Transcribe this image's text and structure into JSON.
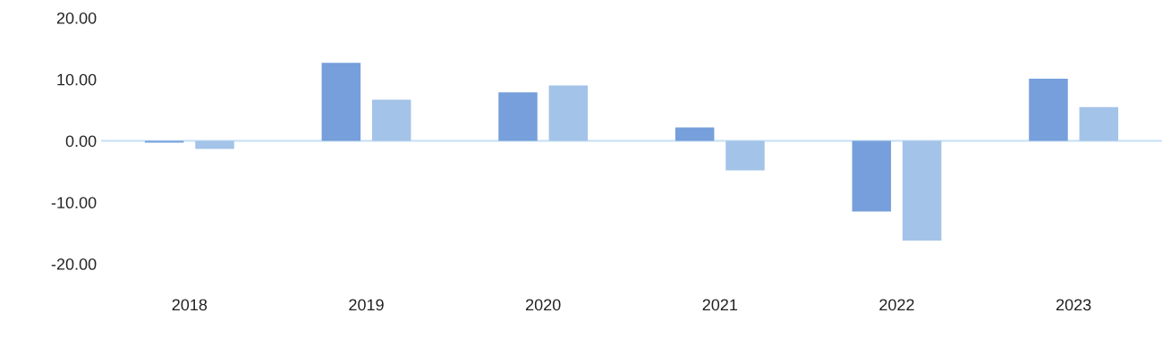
{
  "chart_data": {
    "type": "bar",
    "categories": [
      "2018",
      "2019",
      "2020",
      "2021",
      "2022",
      "2023"
    ],
    "series": [
      {
        "color": "#769fdb",
        "values": [
          -0.3,
          12.7,
          7.9,
          2.2,
          -11.5,
          10.1
        ]
      },
      {
        "color": "#a4c3e8",
        "values": [
          -1.3,
          6.7,
          9.0,
          -4.8,
          -16.2,
          5.5
        ]
      }
    ],
    "ylim": [
      -20,
      20
    ],
    "yticks": [
      {
        "value": -20,
        "label": "-20.00"
      },
      {
        "value": -10,
        "label": "-10.00"
      },
      {
        "value": 0,
        "label": "0.00"
      },
      {
        "value": 10,
        "label": "10.00"
      },
      {
        "value": 20,
        "label": "20.00"
      }
    ],
    "ref_lines": [
      {
        "axis": "y",
        "value": 0,
        "color": "#c5dff5"
      }
    ],
    "grid": false
  }
}
